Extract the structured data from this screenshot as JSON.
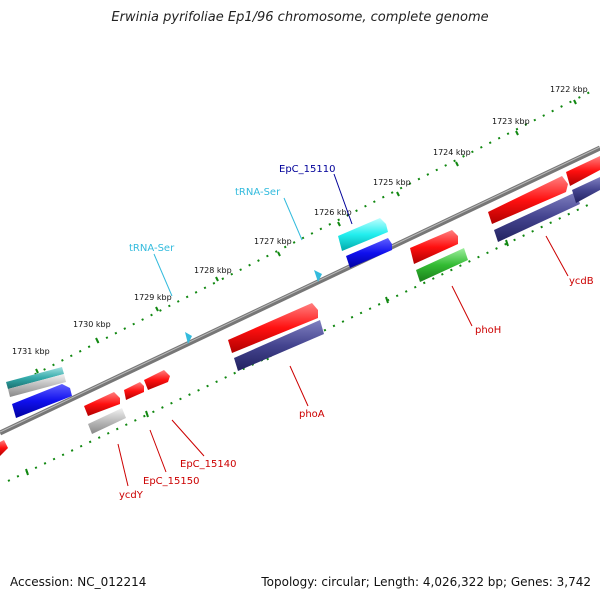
{
  "title": "Erwinia pyrifoliae Ep1/96 chromosome, complete genome",
  "footer": {
    "accession": "Accession: NC_012214",
    "summary": "Topology: circular; Length: 4,026,322 bp; Genes: 3,742"
  },
  "ruler": {
    "unit": "kbp",
    "labels": [
      "1722 kbp",
      "1723 kbp",
      "1724 kbp",
      "1725 kbp",
      "1726 kbp",
      "1727 kbp",
      "1728 kbp",
      "1729 kbp",
      "1730 kbp",
      "1731 kbp"
    ]
  },
  "colors": {
    "forward_cds": "#ff0000",
    "forward_cds_alt": "#0000ff",
    "reverse_cds": "#3f3f8f",
    "trna": "#33bbdd",
    "pseudo": "#aaaaaa",
    "other": "#33bb33",
    "backbone": "#777777",
    "ruler_ticks": "#118811",
    "label_blue": "#000099",
    "label_red": "#cc0000",
    "label_cyan": "#33bbdd"
  },
  "labels": [
    {
      "text": "EpC_15110",
      "color": "#000099"
    },
    {
      "text": "tRNA-Ser",
      "color": "#33bbdd"
    },
    {
      "text": "tRNA-Ser",
      "color": "#33bbdd"
    },
    {
      "text": "ycdB",
      "color": "#cc0000"
    },
    {
      "text": "phoH",
      "color": "#cc0000"
    },
    {
      "text": "phoA",
      "color": "#cc0000"
    },
    {
      "text": "EpC_15140",
      "color": "#cc0000"
    },
    {
      "text": "EpC_15150",
      "color": "#cc0000"
    },
    {
      "text": "ycdY",
      "color": "#cc0000"
    }
  ]
}
